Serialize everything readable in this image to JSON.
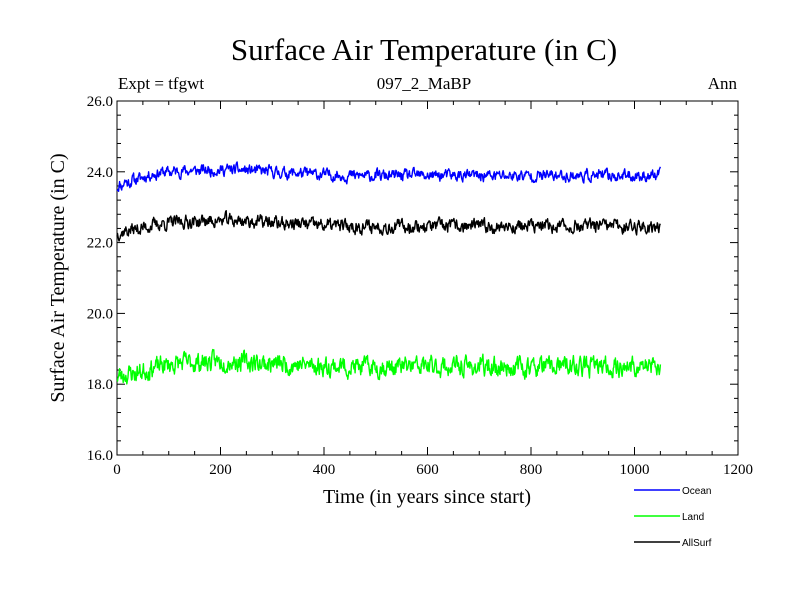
{
  "chart_data": {
    "type": "line",
    "title": "Surface Air Temperature (in C)",
    "subtitle": "097_2_MaBP",
    "left_label": "Expt = tfgwt",
    "right_label": "Ann",
    "xlabel": "Time (in years since start)",
    "ylabel": "Surface Air Temperature (in C)",
    "xlim": [
      0,
      1200
    ],
    "ylim": [
      16.0,
      26.0
    ],
    "xticks": [
      0,
      200,
      400,
      600,
      800,
      1000,
      1200
    ],
    "xtick_labels": [
      "0",
      "200",
      "400",
      "600",
      "800",
      "1000",
      "1200"
    ],
    "yticks": [
      16.0,
      18.0,
      20.0,
      22.0,
      24.0,
      26.0
    ],
    "ytick_labels": [
      "16.0",
      "18.0",
      "20.0",
      "22.0",
      "24.0",
      "26.0"
    ],
    "grid": false,
    "legend_position": "bottom-right",
    "x_start": 0,
    "x_end": 1050,
    "x_step": 5,
    "series": [
      {
        "name": "Ocean",
        "color": "#0000ff",
        "values": [
          23.55,
          23.65,
          23.6,
          23.75,
          23.7,
          23.7,
          23.8,
          23.75,
          23.82,
          23.8,
          23.85,
          23.88,
          23.9,
          23.92,
          23.95,
          23.93,
          23.96,
          23.98,
          24.0,
          23.97,
          24.0,
          23.99,
          24.02,
          24.0,
          24.03,
          24.01,
          24.04,
          24.02,
          24.03,
          24.05,
          24.02,
          24.04,
          24.02,
          24.05,
          24.03,
          24.06,
          24.03,
          24.04,
          24.07,
          24.05,
          24.04,
          24.06,
          24.08,
          24.05,
          24.06,
          24.04,
          24.07,
          24.05,
          24.03,
          24.06,
          24.04,
          24.02,
          24.05,
          24.03,
          24.01,
          24.03,
          24.0,
          24.02,
          23.99,
          24.01,
          23.98,
          24.0,
          23.97,
          23.99,
          23.96,
          23.98,
          23.95,
          23.97,
          23.96,
          23.98,
          23.95,
          23.97,
          23.94,
          23.96,
          23.93,
          23.95,
          23.92,
          23.94,
          23.91,
          23.93,
          23.92,
          23.9,
          23.93,
          23.91,
          23.9,
          23.92,
          23.89,
          23.91,
          23.9,
          23.88,
          23.9,
          23.89,
          23.87,
          23.89,
          23.88,
          23.9,
          23.88,
          23.87,
          23.89,
          23.88,
          23.9,
          23.89,
          23.87,
          23.9,
          23.88,
          23.89,
          23.87,
          23.88,
          23.9,
          23.88,
          23.89,
          23.9,
          23.88,
          23.89,
          23.91,
          23.89,
          23.9,
          23.88,
          23.9,
          23.89,
          23.91,
          23.89,
          23.9,
          23.88,
          23.9,
          23.89,
          23.91,
          23.89,
          23.9,
          23.88,
          23.89,
          23.9,
          23.88,
          23.9,
          23.89,
          23.88,
          23.9,
          23.89,
          23.9,
          23.88,
          23.89,
          23.9,
          23.88,
          23.89,
          23.9,
          23.88,
          23.89,
          23.9,
          23.88,
          23.89,
          23.9,
          23.88,
          23.89,
          23.9,
          23.88,
          23.89,
          23.9,
          23.88,
          23.89,
          23.9,
          23.88,
          23.89,
          23.9,
          23.88,
          23.89,
          23.9,
          23.88,
          23.89,
          23.9,
          23.88,
          23.89,
          23.9,
          23.88,
          23.89,
          23.9,
          23.88,
          23.89,
          23.9,
          23.88,
          23.89,
          23.9,
          23.88,
          23.89,
          23.9,
          23.88,
          23.89,
          23.9,
          23.88,
          23.89,
          23.9,
          23.88,
          23.89,
          23.9,
          23.88,
          23.89,
          23.9,
          23.88,
          23.89,
          23.9,
          23.88,
          23.89,
          23.9,
          23.88,
          23.89,
          23.9,
          23.88,
          23.89,
          23.9,
          23.88,
          23.89,
          23.9,
          23.88,
          23.89,
          23.9,
          23.88
        ],
        "noise_amplitude": 0.13,
        "noise_seed": 11
      },
      {
        "name": "Land",
        "color": "#00ff00",
        "values": [
          18.2,
          18.25,
          18.22,
          18.3,
          18.28,
          18.3,
          18.32,
          18.3,
          18.35,
          18.33,
          18.38,
          18.4,
          18.42,
          18.45,
          18.48,
          18.46,
          18.5,
          18.52,
          18.55,
          18.52,
          18.56,
          18.55,
          18.58,
          18.56,
          18.6,
          18.57,
          18.62,
          18.59,
          18.6,
          18.63,
          18.6,
          18.62,
          18.6,
          18.64,
          18.61,
          18.65,
          18.62,
          18.63,
          18.66,
          18.64,
          18.62,
          18.65,
          18.68,
          18.64,
          18.66,
          18.63,
          18.67,
          18.64,
          18.62,
          18.65,
          18.63,
          18.6,
          18.64,
          18.62,
          18.6,
          18.62,
          18.58,
          18.61,
          18.57,
          18.6,
          18.56,
          18.59,
          18.55,
          18.58,
          18.54,
          18.57,
          18.53,
          18.56,
          18.55,
          18.58,
          18.54,
          18.57,
          18.53,
          18.56,
          18.52,
          18.55,
          18.51,
          18.54,
          18.5,
          18.53,
          18.52,
          18.5,
          18.53,
          18.51,
          18.5,
          18.52,
          18.49,
          18.51,
          18.5,
          18.48,
          18.5,
          18.49,
          18.47,
          18.49,
          18.48,
          18.5,
          18.48,
          18.47,
          18.49,
          18.48,
          18.5,
          18.49,
          18.47,
          18.5,
          18.48,
          18.49,
          18.47,
          18.48,
          18.5,
          18.48,
          18.49,
          18.5,
          18.48,
          18.49,
          18.51,
          18.49,
          18.5,
          18.48,
          18.5,
          18.49,
          18.51,
          18.49,
          18.5,
          18.48,
          18.5,
          18.49,
          18.51,
          18.49,
          18.5,
          18.48,
          18.49,
          18.5,
          18.48,
          18.5,
          18.49,
          18.48,
          18.5,
          18.49,
          18.5,
          18.48,
          18.49,
          18.5,
          18.48,
          18.49,
          18.5,
          18.48,
          18.49,
          18.5,
          18.48,
          18.49,
          18.5,
          18.48,
          18.49,
          18.5,
          18.48,
          18.49,
          18.5,
          18.48,
          18.49,
          18.5,
          18.48,
          18.49,
          18.5,
          18.48,
          18.49,
          18.5,
          18.48,
          18.49,
          18.5,
          18.48,
          18.49,
          18.5,
          18.48,
          18.49,
          18.5,
          18.48,
          18.49,
          18.5,
          18.48,
          18.49,
          18.5,
          18.48,
          18.49,
          18.5,
          18.48,
          18.49,
          18.5,
          18.48,
          18.49,
          18.5,
          18.48,
          18.49,
          18.5,
          18.48,
          18.49,
          18.5,
          18.48,
          18.49,
          18.5,
          18.48,
          18.49,
          18.5,
          18.48,
          18.49,
          18.5,
          18.48,
          18.49,
          18.5,
          18.48
        ],
        "noise_amplitude": 0.22,
        "noise_seed": 23
      },
      {
        "name": "AllSurf",
        "color": "#000000",
        "values": [
          22.25,
          22.3,
          22.28,
          22.35,
          22.33,
          22.35,
          22.38,
          22.36,
          22.4,
          22.39,
          22.42,
          22.44,
          22.46,
          22.48,
          22.5,
          22.49,
          22.52,
          22.53,
          22.55,
          22.53,
          22.56,
          22.55,
          22.58,
          22.56,
          22.59,
          22.57,
          22.6,
          22.58,
          22.59,
          22.61,
          22.58,
          22.6,
          22.58,
          22.62,
          22.59,
          22.63,
          22.6,
          22.61,
          22.64,
          22.62,
          22.6,
          22.63,
          22.65,
          22.62,
          22.63,
          22.61,
          22.64,
          22.62,
          22.6,
          22.63,
          22.61,
          22.59,
          22.62,
          22.6,
          22.58,
          22.6,
          22.57,
          22.59,
          22.56,
          22.58,
          22.55,
          22.57,
          22.54,
          22.56,
          22.53,
          22.55,
          22.52,
          22.54,
          22.53,
          22.55,
          22.52,
          22.54,
          22.51,
          22.53,
          22.5,
          22.52,
          22.49,
          22.51,
          22.48,
          22.5,
          22.49,
          22.47,
          22.5,
          22.48,
          22.47,
          22.49,
          22.46,
          22.48,
          22.47,
          22.45,
          22.47,
          22.46,
          22.44,
          22.46,
          22.45,
          22.47,
          22.45,
          22.44,
          22.46,
          22.45,
          22.47,
          22.46,
          22.44,
          22.47,
          22.45,
          22.46,
          22.44,
          22.45,
          22.47,
          22.45,
          22.46,
          22.47,
          22.45,
          22.46,
          22.48,
          22.46,
          22.47,
          22.45,
          22.47,
          22.46,
          22.48,
          22.46,
          22.47,
          22.45,
          22.47,
          22.46,
          22.48,
          22.46,
          22.47,
          22.45,
          22.46,
          22.47,
          22.45,
          22.47,
          22.46,
          22.45,
          22.47,
          22.46,
          22.47,
          22.45,
          22.46,
          22.47,
          22.45,
          22.46,
          22.47,
          22.45,
          22.46,
          22.47,
          22.45,
          22.46,
          22.47,
          22.45,
          22.46,
          22.47,
          22.45,
          22.46,
          22.47,
          22.45,
          22.46,
          22.47,
          22.45,
          22.46,
          22.47,
          22.45,
          22.46,
          22.47,
          22.45,
          22.46,
          22.47,
          22.45,
          22.46,
          22.47,
          22.45,
          22.46,
          22.47,
          22.45,
          22.46,
          22.47,
          22.45,
          22.46,
          22.47,
          22.45,
          22.46,
          22.47,
          22.45,
          22.46,
          22.47,
          22.45,
          22.46,
          22.47,
          22.45,
          22.46,
          22.47,
          22.45,
          22.46,
          22.47,
          22.45,
          22.46,
          22.47,
          22.45,
          22.46,
          22.47,
          22.45,
          22.46,
          22.47,
          22.45,
          22.46,
          22.47,
          22.45
        ],
        "noise_amplitude": 0.15,
        "noise_seed": 37
      }
    ]
  }
}
